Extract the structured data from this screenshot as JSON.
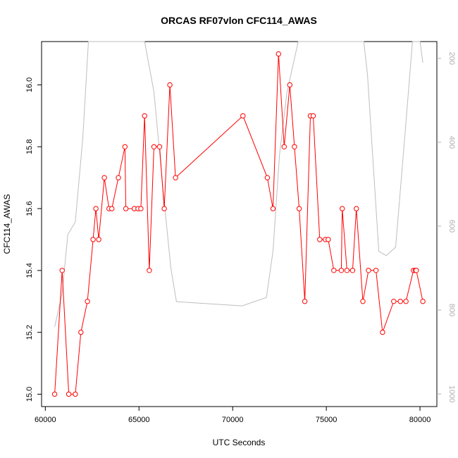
{
  "chart_data": {
    "type": "line",
    "title": "ORCAS RF07vlon CFC114_AWAS",
    "xlabel": "UTC Seconds",
    "ylabel": "CFC114_AWAS",
    "xlim": [
      59800,
      80900
    ],
    "ylim": [
      14.96,
      16.14
    ],
    "x_ticks": [
      60000,
      65000,
      70000,
      75000,
      80000
    ],
    "x_tick_labels": [
      "60000",
      "65000",
      "70000",
      "75000",
      "80000"
    ],
    "y_ticks": [
      15.0,
      15.2,
      15.4,
      15.6,
      15.8,
      16.0
    ],
    "y_tick_labels": [
      "15.0",
      "15.2",
      "15.4",
      "15.6",
      "15.8",
      "16.0"
    ],
    "y2_ticks": [
      200,
      400,
      600,
      800,
      1000
    ],
    "y2_tick_labels": [
      "200",
      "400",
      "600",
      "800",
      "1000"
    ],
    "y2lim": [
      1030,
      160
    ],
    "grid": false,
    "colors": {
      "main": "#ff0000",
      "secondary": "#bebebe"
    },
    "series": [
      {
        "axis": "left",
        "color": "#ff0000",
        "style": "line+open-circles",
        "x": [
          60500,
          60900,
          61250,
          61600,
          61900,
          62250,
          62550,
          62700,
          62850,
          63150,
          63400,
          63550,
          63900,
          64250,
          64300,
          64750,
          64950,
          65100,
          65300,
          65550,
          65800,
          66100,
          66350,
          66650,
          66950,
          70550,
          71850,
          72150,
          72450,
          72750,
          73050,
          73300,
          73550,
          73850,
          74150,
          74300,
          74650,
          74950,
          75100,
          75400,
          75800,
          75850,
          76100,
          76400,
          76600,
          76950,
          77250,
          77650,
          78000,
          78600,
          78950,
          79250,
          79650,
          79750,
          79800,
          80150
        ],
        "y": [
          15.0,
          15.4,
          15.0,
          15.0,
          15.2,
          15.3,
          15.5,
          15.6,
          15.5,
          15.7,
          15.6,
          15.6,
          15.7,
          15.8,
          15.6,
          15.6,
          15.6,
          15.6,
          15.9,
          15.4,
          15.8,
          15.8,
          15.6,
          16.0,
          15.7,
          15.9,
          15.7,
          15.6,
          16.1,
          15.8,
          16.0,
          15.8,
          15.6,
          15.3,
          15.9,
          15.9,
          15.5,
          15.5,
          15.5,
          15.4,
          15.4,
          15.6,
          15.4,
          15.4,
          15.6,
          15.3,
          15.4,
          15.4,
          15.2,
          15.3,
          15.3,
          15.3,
          15.4,
          15.4,
          15.4,
          15.3
        ]
      },
      {
        "axis": "right",
        "color": "#bebebe",
        "style": "line",
        "x": [
          60500,
          60900,
          61200,
          61600,
          62000,
          62300,
          62500,
          63800,
          64300,
          64800,
          65300,
          65800,
          66300,
          66700,
          67000,
          70500,
          71800,
          72150,
          72500,
          72900,
          73500,
          74000,
          74500,
          75000,
          75500,
          76000,
          76500,
          77000,
          77200,
          77800,
          78200,
          78700,
          79200,
          79600,
          80000,
          80150
        ],
        "y": [
          840,
          760,
          620,
          590,
          390,
          160,
          160,
          160,
          160,
          160,
          160,
          280,
          520,
          700,
          780,
          790,
          770,
          660,
          430,
          280,
          160,
          160,
          160,
          160,
          160,
          160,
          160,
          160,
          240,
          660,
          670,
          650,
          380,
          160,
          160,
          210
        ]
      }
    ]
  }
}
